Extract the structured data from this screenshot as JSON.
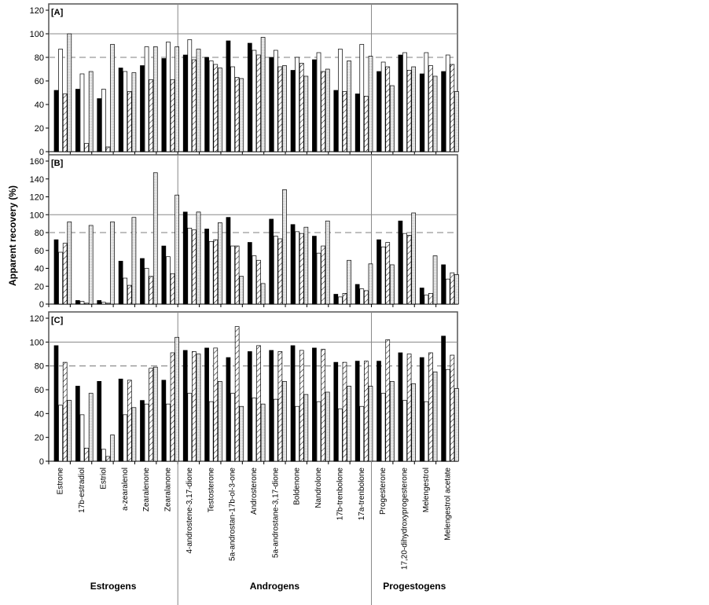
{
  "chart_data": {
    "type": "bar",
    "ylabel": "Apparent recovery (%)",
    "categories": [
      "Estrone",
      "17b-estradiol",
      "Estriol",
      "a-zearalenol",
      "Zearalenone",
      "Zearalanone",
      "4-androstene-3,17-dione",
      "Testosterone",
      "5a-androstan-17b-ol-3-one",
      "Androsterone",
      "5a-androstane-3,17-dione",
      "Boldenone",
      "Nandrolone",
      "17b-trenbolone",
      "17a-trenbolone",
      "Progesterone",
      "17,20-dihydroxyprogesterone",
      "Melengestrol",
      "Melengestrol acetate"
    ],
    "groups": [
      {
        "label": "Estrogens",
        "count": 6
      },
      {
        "label": "Androgens",
        "count": 9
      },
      {
        "label": "Progestogens",
        "count": 4
      }
    ],
    "series_styles": [
      "black",
      "white",
      "hatched",
      "dotted"
    ],
    "reference_lines": {
      "solid": 100,
      "dashed": 80
    },
    "panels": [
      {
        "label": "[A]",
        "ylim": [
          0,
          120
        ],
        "yticks": [
          "0",
          "20",
          "40",
          "60",
          "80",
          "100",
          "120"
        ],
        "series": [
          {
            "name": "black",
            "values": [
              52,
              53,
              45,
              71,
              73,
              79,
              82,
              80,
              94,
              92,
              80,
              69,
              78,
              52,
              49,
              68,
              82,
              66,
              68
            ]
          },
          {
            "name": "white",
            "values": [
              87,
              66,
              53,
              68,
              89,
              93,
              95,
              77,
              72,
              86,
              86,
              80,
              84,
              87,
              91,
              76,
              84,
              84,
              82
            ]
          },
          {
            "name": "hatched",
            "values": [
              49,
              7,
              4,
              51,
              61,
              61,
              78,
              74,
              63,
              82,
              72,
              75,
              68,
              51,
              47,
              72,
              69,
              73,
              74
            ]
          },
          {
            "name": "dotted",
            "values": [
              100,
              68,
              91,
              67,
              89,
              89,
              87,
              71,
              62,
              97,
              73,
              64,
              70,
              77,
              81,
              56,
              72,
              64,
              51
            ]
          }
        ]
      },
      {
        "label": "[B]",
        "ylim": [
          0,
          160
        ],
        "yticks": [
          "0",
          "20",
          "40",
          "60",
          "80",
          "100",
          "120",
          "140",
          "160"
        ],
        "series": [
          {
            "name": "black",
            "values": [
              72,
              4,
              4,
              48,
              51,
              65,
              103,
              84,
              97,
              69,
              95,
              89,
              76,
              11,
              22,
              72,
              93,
              18,
              44
            ]
          },
          {
            "name": "white",
            "values": [
              58,
              3,
              2,
              29,
              40,
              53,
              85,
              70,
              65,
              54,
              76,
              81,
              57,
              8,
              17,
              64,
              79,
              10,
              28
            ]
          },
          {
            "name": "hatched",
            "values": [
              68,
              1,
              1,
              21,
              31,
              34,
              83,
              72,
              65,
              49,
              73,
              79,
              65,
              12,
              15,
              69,
              77,
              12,
              35
            ]
          },
          {
            "name": "dotted",
            "values": [
              92,
              88,
              92,
              97,
              147,
              122,
              103,
              91,
              31,
              23,
              128,
              86,
              93,
              49,
              45,
              44,
              102,
              54,
              33
            ]
          }
        ]
      },
      {
        "label": "[C]",
        "ylim": [
          0,
          120
        ],
        "yticks": [
          "0",
          "20",
          "40",
          "60",
          "80",
          "100",
          "120"
        ],
        "series": [
          {
            "name": "black",
            "values": [
              97,
              63,
              67,
              69,
              51,
              68,
              93,
              95,
              87,
              92,
              93,
              97,
              95,
              83,
              84,
              84,
              91,
              87,
              105
            ]
          },
          {
            "name": "white",
            "values": [
              47,
              39,
              10,
              39,
              48,
              48,
              57,
              50,
              57,
              53,
              52,
              46,
              50,
              44,
              46,
              57,
              51,
              50,
              77
            ]
          },
          {
            "name": "hatched",
            "values": [
              83,
              11,
              4,
              68,
              78,
              91,
              92,
              95,
              113,
              97,
              92,
              93,
              94,
              83,
              84,
              102,
              90,
              91,
              89
            ]
          },
          {
            "name": "dotted",
            "values": [
              51,
              57,
              22,
              45,
              79,
              104,
              90,
              67,
              46,
              48,
              67,
              56,
              58,
              63,
              63,
              67,
              65,
              75,
              61
            ]
          }
        ]
      }
    ]
  }
}
